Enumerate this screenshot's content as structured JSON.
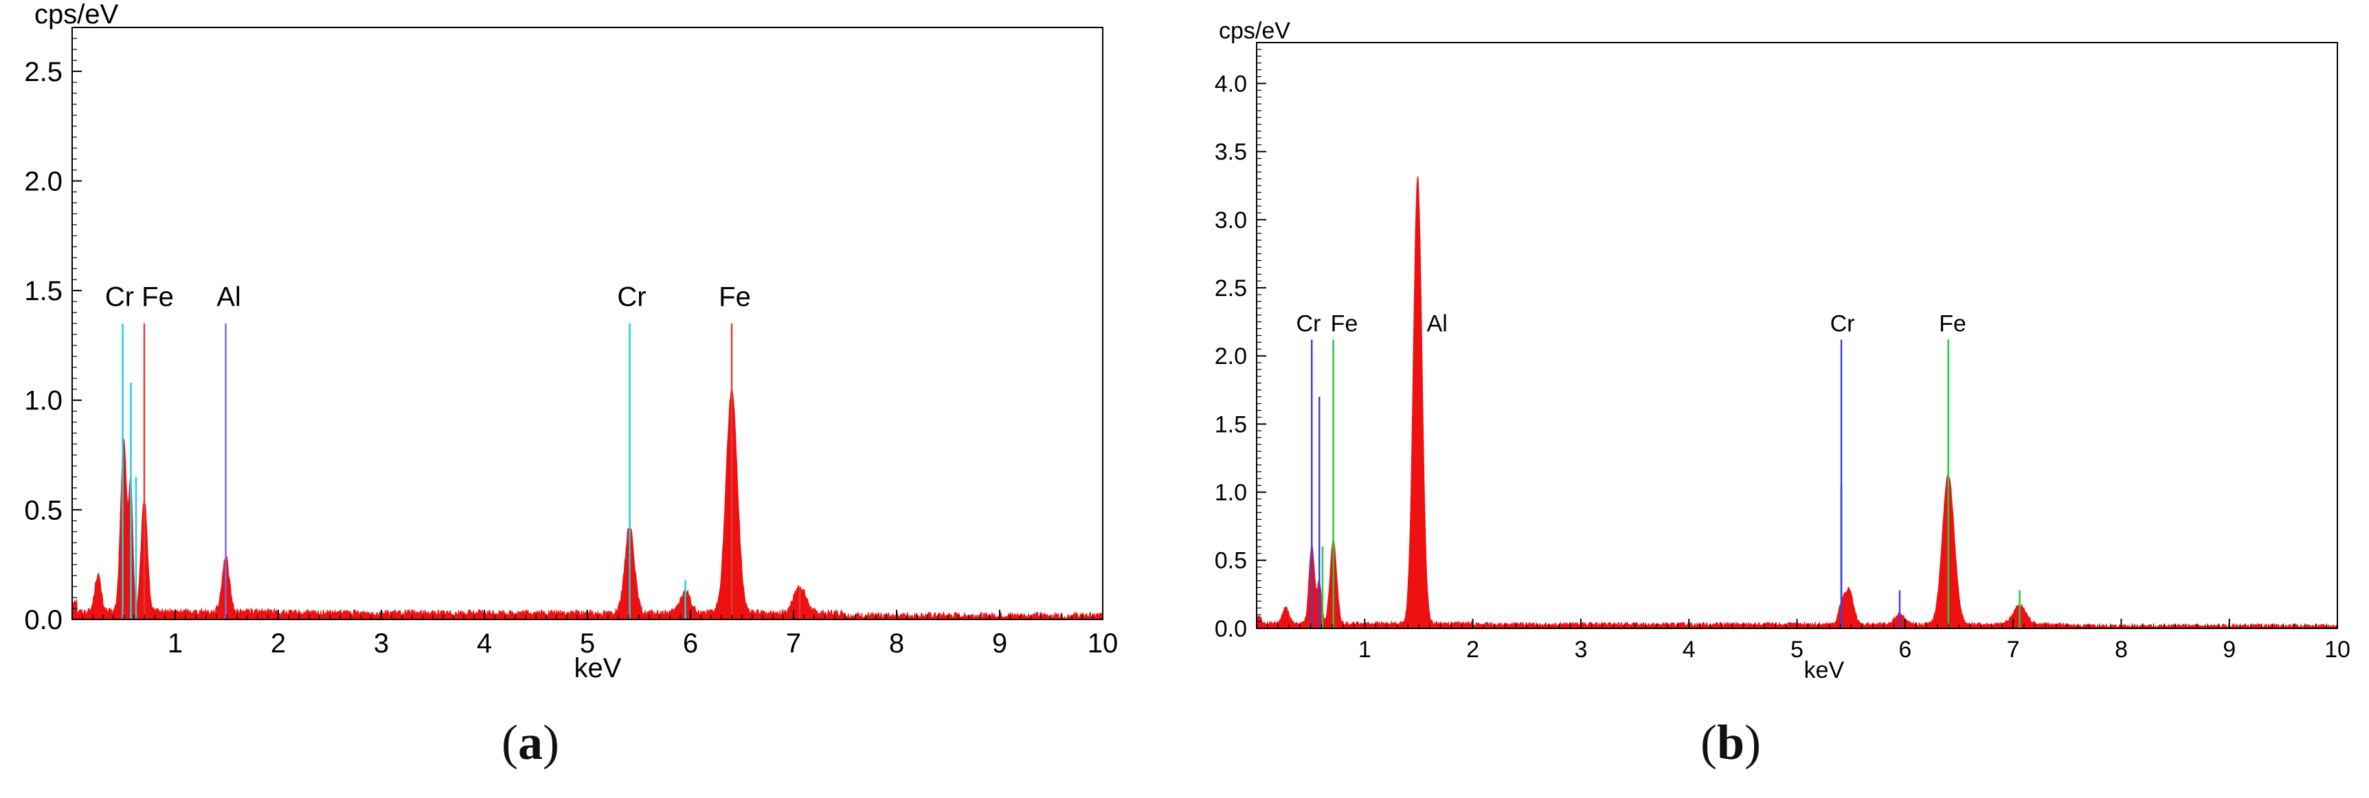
{
  "colors": {
    "spectrum": "#ee1111",
    "cyan_line": "#19d6e0",
    "red_line": "#e23a3a",
    "purple_line": "#7b6be6",
    "blue_line": "#3f3fe0",
    "green_line": "#22cc44",
    "frame": "#000000",
    "text": "#000000"
  },
  "chart_data": [
    {
      "id": "a",
      "type": "area",
      "panel_label": "a",
      "title": "",
      "xlabel": "keV",
      "ylabel": "cps/eV",
      "xlim": [
        0,
        10
      ],
      "ylim": [
        0,
        2.7
      ],
      "xticks": [
        "1",
        "2",
        "3",
        "4",
        "5",
        "6",
        "7",
        "8",
        "9",
        "10"
      ],
      "yticks": [
        "0.0",
        "0.5",
        "1.0",
        "1.5",
        "2.0",
        "2.5"
      ],
      "yticks_values": [
        0,
        0.5,
        1.0,
        1.5,
        2.0,
        2.5
      ],
      "grid": false,
      "baseline": 0.03,
      "noise": 0.015,
      "peaks": [
        {
          "x": 0.25,
          "y": 0.17,
          "w": 0.03
        },
        {
          "x": 0.5,
          "y": 0.78,
          "w": 0.03
        },
        {
          "x": 0.57,
          "y": 0.55,
          "w": 0.02
        },
        {
          "x": 0.7,
          "y": 0.52,
          "w": 0.03
        },
        {
          "x": 1.49,
          "y": 0.25,
          "w": 0.035
        },
        {
          "x": 5.41,
          "y": 0.4,
          "w": 0.045
        },
        {
          "x": 5.95,
          "y": 0.1,
          "w": 0.05
        },
        {
          "x": 6.4,
          "y": 1.02,
          "w": 0.055
        },
        {
          "x": 7.06,
          "y": 0.12,
          "w": 0.06
        }
      ],
      "marker_lines": [
        {
          "x": 0.49,
          "h": 1.35,
          "color": "cyan_line"
        },
        {
          "x": 0.57,
          "h": 1.08,
          "color": "cyan_line"
        },
        {
          "x": 0.7,
          "h": 1.35,
          "color": "red_line"
        },
        {
          "x": 0.62,
          "h": 0.65,
          "color": "cyan_line"
        },
        {
          "x": 1.49,
          "h": 1.35,
          "color": "purple_line"
        },
        {
          "x": 5.41,
          "h": 1.35,
          "color": "cyan_line"
        },
        {
          "x": 5.95,
          "h": 0.18,
          "color": "cyan_line"
        },
        {
          "x": 6.4,
          "h": 1.35,
          "color": "red_line"
        },
        {
          "x": 7.06,
          "h": 0.14,
          "color": "red_line"
        }
      ],
      "element_labels": [
        {
          "text": "Cr",
          "x": 0.46
        },
        {
          "text": "Fe",
          "x": 0.83
        },
        {
          "text": "Al",
          "x": 1.52
        },
        {
          "text": "Cr",
          "x": 5.43
        },
        {
          "text": "Fe",
          "x": 6.43
        }
      ],
      "element_label_y": 1.43
    },
    {
      "id": "b",
      "type": "area",
      "panel_label": "b",
      "title": "",
      "xlabel": "keV",
      "ylabel": "cps/eV",
      "xlim": [
        0,
        10
      ],
      "ylim": [
        0,
        4.3
      ],
      "xticks": [
        "1",
        "2",
        "3",
        "4",
        "5",
        "6",
        "7",
        "8",
        "9",
        "10"
      ],
      "yticks": [
        "0.0",
        "0.5",
        "1.0",
        "1.5",
        "2.0",
        "2.5",
        "3.0",
        "3.5",
        "4.0"
      ],
      "yticks_values": [
        0,
        0.5,
        1.0,
        1.5,
        2.0,
        2.5,
        3.0,
        3.5,
        4.0
      ],
      "grid": false,
      "baseline": 0.03,
      "noise": 0.015,
      "peaks": [
        {
          "x": 0.27,
          "y": 0.12,
          "w": 0.03
        },
        {
          "x": 0.51,
          "y": 0.58,
          "w": 0.025
        },
        {
          "x": 0.58,
          "y": 0.3,
          "w": 0.02
        },
        {
          "x": 0.71,
          "y": 0.62,
          "w": 0.03
        },
        {
          "x": 1.49,
          "y": 3.28,
          "w": 0.04
        },
        {
          "x": 5.41,
          "y": 0.12,
          "w": 0.03
        },
        {
          "x": 5.48,
          "y": 0.25,
          "w": 0.04
        },
        {
          "x": 5.95,
          "y": 0.07,
          "w": 0.05
        },
        {
          "x": 6.4,
          "y": 1.1,
          "w": 0.055
        },
        {
          "x": 7.06,
          "y": 0.14,
          "w": 0.06
        }
      ],
      "marker_lines": [
        {
          "x": 0.51,
          "h": 2.12,
          "color": "blue_line"
        },
        {
          "x": 0.58,
          "h": 1.7,
          "color": "blue_line"
        },
        {
          "x": 0.61,
          "h": 0.6,
          "color": "green_line"
        },
        {
          "x": 0.71,
          "h": 2.12,
          "color": "green_line"
        },
        {
          "x": 5.41,
          "h": 2.12,
          "color": "blue_line"
        },
        {
          "x": 5.41,
          "h": 1.05,
          "color": "blue_line"
        },
        {
          "x": 5.95,
          "h": 0.28,
          "color": "blue_line"
        },
        {
          "x": 6.4,
          "h": 2.12,
          "color": "green_line"
        },
        {
          "x": 7.06,
          "h": 0.28,
          "color": "green_line"
        }
      ],
      "element_labels": [
        {
          "text": "Cr",
          "x": 0.48
        },
        {
          "text": "Fe",
          "x": 0.81
        },
        {
          "text": "Al",
          "x": 1.67
        },
        {
          "text": "Cr",
          "x": 5.42
        },
        {
          "text": "Fe",
          "x": 6.44
        }
      ],
      "element_label_y": 2.18
    }
  ]
}
